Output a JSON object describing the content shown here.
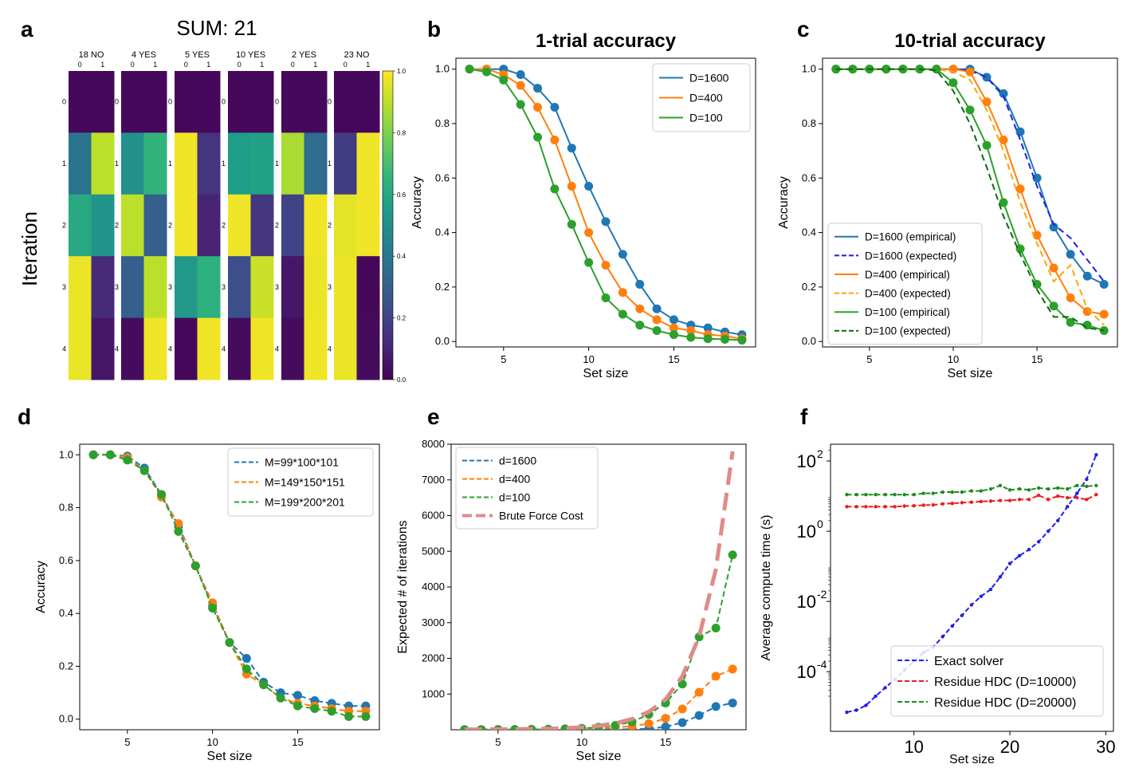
{
  "panel_labels": [
    "a",
    "b",
    "c",
    "d",
    "e",
    "f"
  ],
  "chart_data": [
    {
      "panel": "a",
      "type": "heatmap",
      "title": "SUM: 21",
      "ylabel": "Iteration",
      "row_ticks": [
        "0",
        "1",
        "2",
        "3",
        "4"
      ],
      "col_ticks": [
        "0",
        "1"
      ],
      "colorbar": {
        "range": [
          0,
          1
        ],
        "ticks": [
          "0.0",
          "0.2",
          "0.4",
          "0.6",
          "0.8",
          "1.0"
        ]
      },
      "matrices": [
        {
          "label": "18 NO",
          "values": [
            [
              0.02,
              0.02
            ],
            [
              0.38,
              0.9
            ],
            [
              0.6,
              0.52
            ],
            [
              0.97,
              0.12
            ],
            [
              0.97,
              0.06
            ]
          ]
        },
        {
          "label": "4 YES",
          "values": [
            [
              0.02,
              0.02
            ],
            [
              0.5,
              0.65
            ],
            [
              0.9,
              0.3
            ],
            [
              0.3,
              0.9
            ],
            [
              0.03,
              0.98
            ]
          ]
        },
        {
          "label": "5 YES",
          "values": [
            [
              0.02,
              0.02
            ],
            [
              0.98,
              0.15
            ],
            [
              0.98,
              0.1
            ],
            [
              0.53,
              0.63
            ],
            [
              0.02,
              0.98
            ]
          ]
        },
        {
          "label": "10 YES",
          "values": [
            [
              0.02,
              0.02
            ],
            [
              0.55,
              0.57
            ],
            [
              0.98,
              0.16
            ],
            [
              0.24,
              0.92
            ],
            [
              0.03,
              0.98
            ]
          ]
        },
        {
          "label": "2 YES",
          "values": [
            [
              0.02,
              0.02
            ],
            [
              0.87,
              0.35
            ],
            [
              0.2,
              0.98
            ],
            [
              0.06,
              0.97
            ],
            [
              0.03,
              0.98
            ]
          ]
        },
        {
          "label": "23 NO",
          "values": [
            [
              0.02,
              0.02
            ],
            [
              0.18,
              0.98
            ],
            [
              0.96,
              0.98
            ],
            [
              0.97,
              0.02
            ],
            [
              0.97,
              0.03
            ]
          ]
        }
      ]
    },
    {
      "panel": "b",
      "type": "line",
      "title": "1-trial accuracy",
      "xlabel": "Set size",
      "ylabel": "Accuracy",
      "xlim": [
        2.2,
        19.8
      ],
      "ylim": [
        -0.02,
        1.04
      ],
      "xticks": [
        5,
        10,
        15
      ],
      "yticks": [
        0.0,
        0.2,
        0.4,
        0.6,
        0.8,
        1.0
      ],
      "x": [
        3,
        4,
        5,
        6,
        7,
        8,
        9,
        10,
        11,
        12,
        13,
        14,
        15,
        16,
        17,
        18,
        19
      ],
      "series": [
        {
          "name": "D=1600",
          "color": "#1f77b4",
          "dash": "",
          "marker": true,
          "values": [
            1.0,
            1.0,
            1.0,
            0.98,
            0.93,
            0.86,
            0.71,
            0.57,
            0.44,
            0.32,
            0.21,
            0.12,
            0.08,
            0.06,
            0.05,
            0.035,
            0.025
          ]
        },
        {
          "name": "D=400",
          "color": "#ff7f0e",
          "dash": "",
          "marker": true,
          "values": [
            1.0,
            1.0,
            0.98,
            0.94,
            0.86,
            0.74,
            0.57,
            0.4,
            0.28,
            0.18,
            0.12,
            0.08,
            0.05,
            0.04,
            0.025,
            0.02,
            0.01
          ]
        },
        {
          "name": "D=100",
          "color": "#2ca02c",
          "dash": "",
          "marker": true,
          "values": [
            1.0,
            0.99,
            0.96,
            0.87,
            0.75,
            0.56,
            0.43,
            0.29,
            0.16,
            0.1,
            0.06,
            0.04,
            0.025,
            0.015,
            0.01,
            0.008,
            0.005
          ]
        }
      ],
      "legend": "top-right"
    },
    {
      "panel": "c",
      "type": "line",
      "title": "10-trial accuracy",
      "xlabel": "Set size",
      "ylabel": "Accuracy",
      "xlim": [
        2.2,
        19.8
      ],
      "ylim": [
        -0.02,
        1.04
      ],
      "xticks": [
        5,
        10,
        15
      ],
      "yticks": [
        0.0,
        0.2,
        0.4,
        0.6,
        0.8,
        1.0
      ],
      "x": [
        3,
        4,
        5,
        6,
        7,
        8,
        9,
        10,
        11,
        12,
        13,
        14,
        15,
        16,
        17,
        18,
        19
      ],
      "series": [
        {
          "name": "D=1600 (empirical)",
          "color": "#1f77b4",
          "dash": "",
          "marker": true,
          "values": [
            1.0,
            1.0,
            1.0,
            1.0,
            1.0,
            1.0,
            1.0,
            1.0,
            1.0,
            0.97,
            0.91,
            0.77,
            0.6,
            0.42,
            0.32,
            0.24,
            0.21
          ]
        },
        {
          "name": "D=1600 (expected)",
          "color": "#1f1fe8",
          "dash": "8,5",
          "marker": false,
          "values": [
            1.0,
            1.0,
            1.0,
            1.0,
            1.0,
            1.0,
            1.0,
            1.0,
            0.995,
            0.97,
            0.9,
            0.74,
            0.57,
            0.43,
            0.38,
            0.3,
            0.22
          ]
        },
        {
          "name": "D=400 (empirical)",
          "color": "#ff7f0e",
          "dash": "",
          "marker": true,
          "values": [
            1.0,
            1.0,
            1.0,
            1.0,
            1.0,
            1.0,
            1.0,
            1.0,
            0.99,
            0.88,
            0.74,
            0.56,
            0.39,
            0.27,
            0.16,
            0.11,
            0.1
          ]
        },
        {
          "name": "D=400 (expected)",
          "color": "#ffa500",
          "dash": "8,5",
          "marker": false,
          "values": [
            1.0,
            1.0,
            1.0,
            1.0,
            1.0,
            1.0,
            1.0,
            0.99,
            0.96,
            0.85,
            0.7,
            0.51,
            0.36,
            0.22,
            0.28,
            0.12,
            0.06
          ]
        },
        {
          "name": "D=100 (empirical)",
          "color": "#2ca02c",
          "dash": "",
          "marker": true,
          "values": [
            1.0,
            1.0,
            1.0,
            1.0,
            1.0,
            1.0,
            1.0,
            0.95,
            0.85,
            0.72,
            0.51,
            0.34,
            0.21,
            0.13,
            0.07,
            0.06,
            0.04
          ]
        },
        {
          "name": "D=100 (expected)",
          "color": "#0b6b0b",
          "dash": "8,5",
          "marker": false,
          "values": [
            1.0,
            1.0,
            1.0,
            1.0,
            1.0,
            1.0,
            0.995,
            0.92,
            0.8,
            0.64,
            0.46,
            0.32,
            0.19,
            0.09,
            0.09,
            0.05,
            0.04
          ]
        }
      ],
      "legend": "bottom-left"
    },
    {
      "panel": "d",
      "type": "line",
      "title": "",
      "xlabel": "Set size",
      "ylabel": "Accuracy",
      "xlim": [
        2.2,
        19.8
      ],
      "ylim": [
        -0.04,
        1.04
      ],
      "xticks": [
        5,
        10,
        15
      ],
      "yticks": [
        0.0,
        0.2,
        0.4,
        0.6,
        0.8,
        1.0
      ],
      "x": [
        3,
        4,
        5,
        6,
        7,
        8,
        9,
        10,
        11,
        12,
        13,
        14,
        15,
        16,
        17,
        18,
        19
      ],
      "series": [
        {
          "name": "M=99*100*101",
          "color": "#1f77b4",
          "dash": "7,4",
          "marker": true,
          "values": [
            1.0,
            1.0,
            0.995,
            0.95,
            0.85,
            0.73,
            0.58,
            0.43,
            0.29,
            0.23,
            0.14,
            0.1,
            0.09,
            0.07,
            0.06,
            0.05,
            0.05
          ]
        },
        {
          "name": "M=149*150*151",
          "color": "#ff7f0e",
          "dash": "7,4",
          "marker": true,
          "values": [
            1.0,
            1.0,
            0.99,
            0.94,
            0.84,
            0.74,
            0.58,
            0.44,
            0.29,
            0.17,
            0.13,
            0.08,
            0.06,
            0.05,
            0.04,
            0.03,
            0.03
          ]
        },
        {
          "name": "M=199*200*201",
          "color": "#2ca02c",
          "dash": "7,4",
          "marker": true,
          "values": [
            1.0,
            1.0,
            0.98,
            0.94,
            0.85,
            0.71,
            0.58,
            0.42,
            0.29,
            0.19,
            0.13,
            0.08,
            0.05,
            0.04,
            0.03,
            0.01,
            0.01
          ]
        }
      ],
      "legend": "top-right"
    },
    {
      "panel": "e",
      "type": "line",
      "title": "",
      "xlabel": "Set size",
      "ylabel": "Expected # of iterations",
      "xlim": [
        2.2,
        19.8
      ],
      "ylim": [
        0,
        8000
      ],
      "xticks": [
        5,
        10,
        15
      ],
      "yticks": [
        1000,
        2000,
        3000,
        4000,
        5000,
        6000,
        7000,
        8000
      ],
      "x": [
        3,
        4,
        5,
        6,
        7,
        8,
        9,
        10,
        11,
        12,
        13,
        14,
        15,
        16,
        17,
        18,
        19
      ],
      "series": [
        {
          "name": "d=1600",
          "color": "#1f77b4",
          "dash": "7,4",
          "marker": true,
          "values": [
            3,
            4,
            5,
            6,
            7,
            8,
            9,
            10,
            11,
            12,
            14,
            30,
            80,
            200,
            400,
            650,
            750
          ]
        },
        {
          "name": "d=400",
          "color": "#ff7f0e",
          "dash": "7,4",
          "marker": true,
          "values": [
            3,
            4,
            5,
            6,
            8,
            11,
            16,
            25,
            40,
            60,
            100,
            170,
            320,
            580,
            1050,
            1500,
            1700
          ]
        },
        {
          "name": "d=100",
          "color": "#2ca02c",
          "dash": "7,4",
          "marker": true,
          "values": [
            3,
            4,
            5,
            7,
            10,
            16,
            24,
            40,
            70,
            120,
            220,
            430,
            750,
            1280,
            2600,
            2850,
            4900
          ]
        },
        {
          "name": "Brute Force Cost",
          "color": "#e08a8a",
          "dash": "22,10",
          "marker": false,
          "width": 5,
          "values": [
            8,
            10,
            12,
            16,
            22,
            30,
            45,
            70,
            110,
            180,
            300,
            500,
            850,
            1500,
            2600,
            4500,
            7800
          ]
        }
      ],
      "legend": "top-left"
    },
    {
      "panel": "f",
      "type": "line",
      "title": "",
      "xlabel": "Set size",
      "ylabel": "Average compute time (s)",
      "yscale": "log",
      "xlim": [
        1.3,
        30.8
      ],
      "ylim": [
        2e-06,
        300
      ],
      "xticks": [
        10,
        20,
        30
      ],
      "yticks": [
        -4,
        -2,
        0,
        2
      ],
      "x": [
        3,
        4,
        5,
        6,
        7,
        8,
        9,
        10,
        11,
        12,
        13,
        14,
        15,
        16,
        17,
        18,
        19,
        20,
        21,
        22,
        23,
        24,
        25,
        26,
        27,
        28,
        29
      ],
      "series": [
        {
          "name": "Exact solver",
          "color": "#1f1fe8",
          "dash": "6,3",
          "marker": false,
          "dots": true,
          "values": [
            7e-06,
            8e-06,
            1.1e-05,
            2e-05,
            3.5e-05,
            6e-05,
            0.00011,
            0.0002,
            0.00035,
            0.0005,
            0.001,
            0.002,
            0.004,
            0.008,
            0.014,
            0.022,
            0.05,
            0.12,
            0.2,
            0.3,
            0.5,
            1.0,
            2.0,
            5.0,
            12,
            30,
            150
          ]
        },
        {
          "name": "Residue HDC (D=10000)",
          "color": "#e81f1f",
          "dash": "6,3",
          "marker": false,
          "dots": true,
          "values": [
            5,
            5,
            5,
            5,
            5,
            5,
            5.2,
            5.3,
            5.5,
            5.6,
            6.0,
            6.2,
            6.5,
            6.7,
            7.0,
            7.2,
            7.5,
            7.5,
            8.0,
            8.0,
            10.5,
            8,
            10,
            9,
            9,
            8,
            11
          ]
        },
        {
          "name": "Residue HDC (D=20000)",
          "color": "#1f8a1f",
          "dash": "6,3",
          "marker": false,
          "dots": true,
          "values": [
            11,
            11,
            11,
            11,
            11,
            11,
            11,
            11,
            12,
            12,
            13,
            13,
            13,
            14,
            14,
            16,
            20,
            15,
            16,
            15,
            17,
            16,
            17,
            16,
            20,
            19,
            20
          ]
        }
      ],
      "legend": "bottom-right"
    }
  ]
}
